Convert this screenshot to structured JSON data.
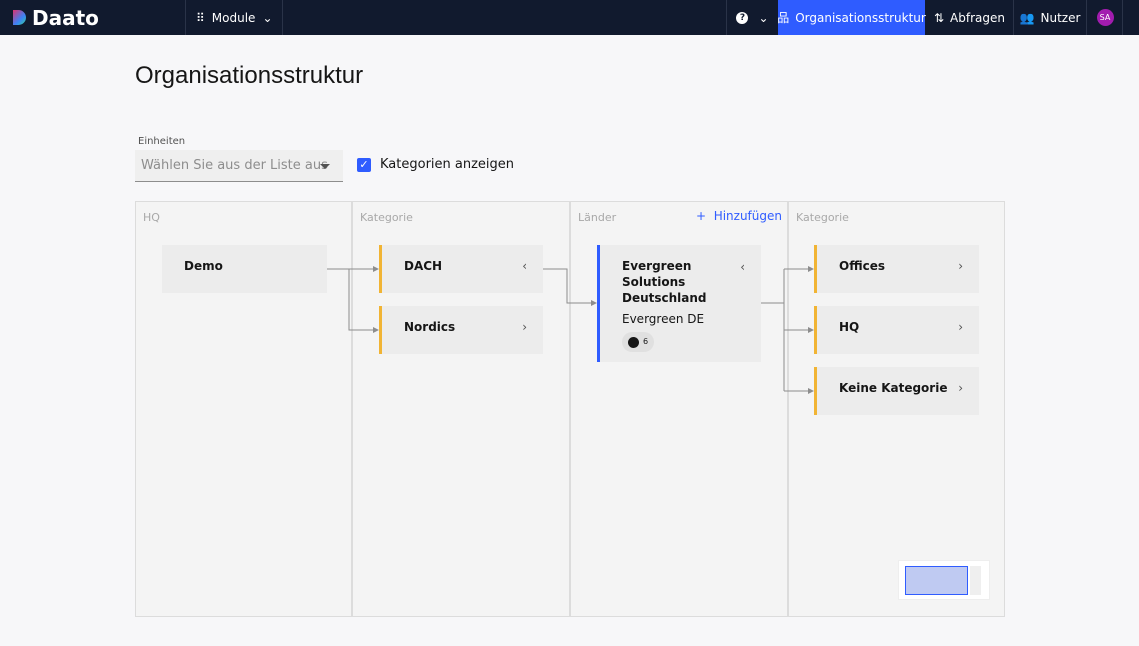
{
  "header": {
    "brand": "Daato",
    "modules": "Module",
    "help_icon": "question-circle-icon",
    "nav": [
      {
        "label": "Organisationsstruktur",
        "active": true
      },
      {
        "label": "Abfragen"
      },
      {
        "label": "Nutzer"
      }
    ],
    "avatar": "SA",
    "accent": "#2f5cff"
  },
  "page": {
    "title": "Organisationsstruktur"
  },
  "filter": {
    "label": "Einheiten",
    "placeholder": "Wählen Sie aus der Liste aus",
    "show_categories": {
      "label": "Kategorien anzeigen",
      "checked": true
    }
  },
  "board": {
    "columns": [
      {
        "header": "HQ"
      },
      {
        "header": "Kategorie"
      },
      {
        "header": "Länder",
        "action": "Hinzufügen"
      },
      {
        "header": "Kategorie"
      }
    ],
    "hq": [
      {
        "name": "Demo"
      }
    ],
    "categories": [
      {
        "name": "DACH",
        "chevron": "‹"
      },
      {
        "name": "Nordics",
        "chevron": "›"
      }
    ],
    "countries": [
      {
        "name": "Evergreen Solutions Deutschland",
        "short": "Evergreen DE",
        "users": "6",
        "chevron": "‹"
      }
    ],
    "sub_categories": [
      {
        "name": "Offices"
      },
      {
        "name": "HQ"
      },
      {
        "name": "Keine Kategorie"
      }
    ]
  }
}
